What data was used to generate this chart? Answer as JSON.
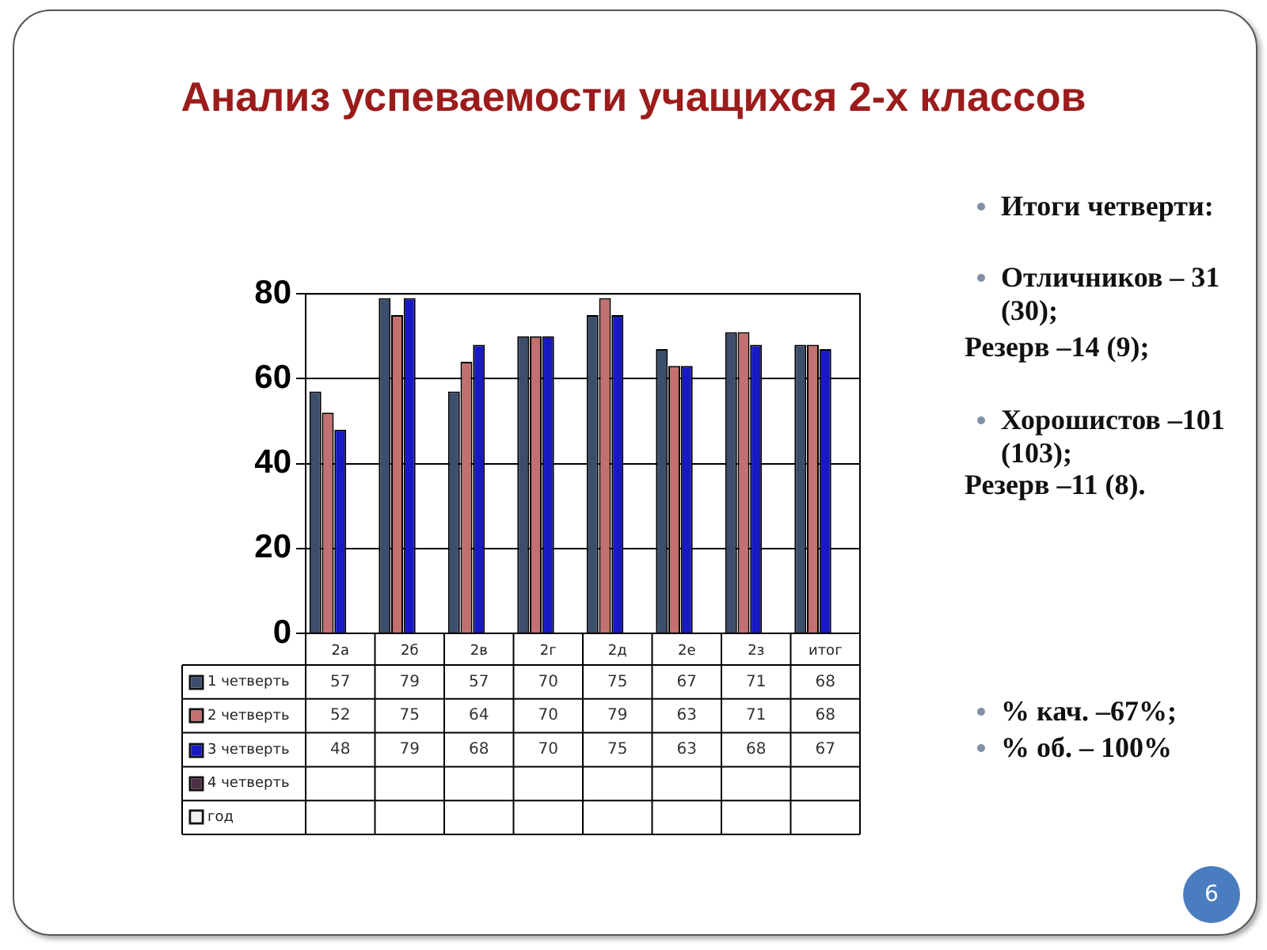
{
  "chart_data": {
    "type": "bar",
    "title": "Анализ успеваемости учащихся 2-х классов",
    "categories": [
      "2а",
      "2б",
      "2в",
      "2г",
      "2д",
      "2е",
      "2з",
      "итог"
    ],
    "series": [
      {
        "name": "1 четверть",
        "color": "#3c4e6c",
        "values": [
          57,
          79,
          57,
          70,
          75,
          67,
          71,
          68
        ]
      },
      {
        "name": "2 четверть",
        "color": "#c27070",
        "values": [
          52,
          75,
          64,
          70,
          79,
          63,
          71,
          68
        ]
      },
      {
        "name": "3 четверть",
        "color": "#1818c4",
        "values": [
          48,
          79,
          68,
          70,
          75,
          63,
          68,
          67
        ]
      },
      {
        "name": "4 четверть",
        "color": "#4d3045",
        "values": [
          null,
          null,
          null,
          null,
          null,
          null,
          null,
          null
        ]
      },
      {
        "name": "год",
        "color": "#f0f0f0",
        "values": [
          null,
          null,
          null,
          null,
          null,
          null,
          null,
          null
        ]
      }
    ],
    "ylim": [
      0,
      80
    ],
    "yticks": [
      0,
      20,
      40,
      60,
      80
    ],
    "grid": "y",
    "legend": "bottom",
    "data_labels": true,
    "annotations": [
      "Итоги четверти:",
      "Отличников – 31 (30);",
      "Резерв –14 (9);",
      "Хорошистов –101 (103);",
      "Резерв –11 (8).",
      "% кач. –67%;",
      "% об. – 100%",
      "6"
    ]
  }
}
